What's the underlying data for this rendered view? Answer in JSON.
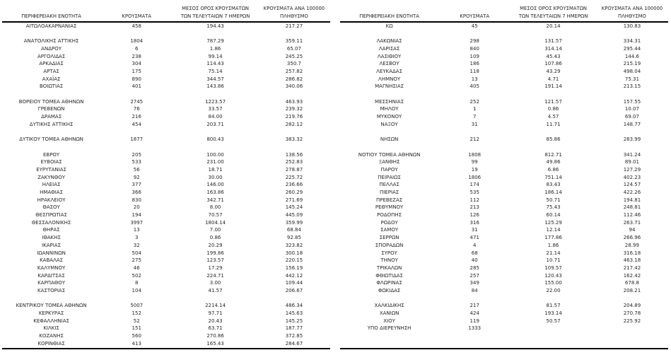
{
  "report": {
    "colors": {
      "text": "#262626",
      "rule": "#000000",
      "background": "#ffffff"
    },
    "columns": [
      {
        "key": "region",
        "lines": [
          "ΠΕΡΙΦΕΡΕΙΑΚΗ ΕΝΟΤΗΤΑ"
        ]
      },
      {
        "key": "cases",
        "lines": [
          "ΚΡΟΥΣΜΑΤΑ"
        ]
      },
      {
        "key": "avg7",
        "lines": [
          "ΜΕΣΟΣ ΟΡΟΣ ΚΡΟΥΣΜΑΤΩΝ",
          "ΤΩΝ ΤΕΛΕΥΤΑΙΩΝ 7 ΗΜΕΡΩΝ"
        ]
      },
      {
        "key": "per100k",
        "lines": [
          "ΚΡΟΥΣΜΑΤΑ ΑΝΑ 100000",
          "ΠΛΗΘΥΣΜΟ"
        ]
      }
    ],
    "left_table": {
      "rows": [
        [
          "ΑΙΤΩΛΟΑΚΑΡΝΑΝΙΑΣ",
          "458",
          "194.43",
          "217.27"
        ],
        null,
        [
          "ΑΝΑΤΟΛΙΚΗΣ ΑΤΤΙΚΗΣ",
          "1804",
          "787.29",
          "359.11"
        ],
        [
          "ΑΝΔΡΟΥ",
          "6",
          "1.86",
          "65.07"
        ],
        [
          "ΑΡΓΟΛΙΔΑΣ",
          "238",
          "99.14",
          "245.25"
        ],
        [
          "ΑΡΚΑΔΙΑΣ",
          "304",
          "114.43",
          "350.7"
        ],
        [
          "ΑΡΤΑΣ",
          "175",
          "75.14",
          "257.82"
        ],
        [
          "ΑΧΑΪΑΣ",
          "890",
          "344.57",
          "286.82"
        ],
        [
          "ΒΟΙΩΤΙΑΣ",
          "401",
          "143.86",
          "340.06"
        ],
        null,
        [
          "ΒΟΡΕΙΟΥ ΤΟΜΕΑ ΑΘΗΝΩΝ",
          "2745",
          "1223.57",
          "463.93"
        ],
        [
          "ΓΡΕΒΕΝΩΝ",
          "76",
          "33.57",
          "239.32"
        ],
        [
          "ΔΡΑΜΑΣ",
          "216",
          "84.00",
          "219.76"
        ],
        [
          "ΔΥΤΙΚΗΣ ΑΤΤΙΚΗΣ",
          "454",
          "203.71",
          "282.12"
        ],
        null,
        [
          "ΔΥΤΙΚΟΥ ΤΟΜΕΑ ΑΘΗΝΩΝ",
          "1877",
          "800.43",
          "383.32"
        ],
        null,
        [
          "ΕΒΡΟΥ",
          "205",
          "100.00",
          "138.56"
        ],
        [
          "ΕΥΒΟΙΑΣ",
          "533",
          "231.00",
          "252.83"
        ],
        [
          "ΕΥΡΥΤΑΝΙΑΣ",
          "56",
          "18.71",
          "278.87"
        ],
        [
          "ΖΑΚΥΝΘΟΥ",
          "92",
          "30.00",
          "225.72"
        ],
        [
          "ΗΛΕΙΑΣ",
          "377",
          "146.00",
          "236.66"
        ],
        [
          "ΗΜΑΘΙΑΣ",
          "366",
          "163.86",
          "260.29"
        ],
        [
          "ΗΡΑΚΛΕΙΟΥ",
          "830",
          "342.71",
          "271.69"
        ],
        [
          "ΘΑΣΟΥ",
          "20",
          "8.00",
          "145.24"
        ],
        [
          "ΘΕΣΠΡΩΤΙΑΣ",
          "194",
          "70.57",
          "445.09"
        ],
        [
          "ΘΕΣΣΑΛΟΝΙΚΗΣ",
          "3997",
          "1804.14",
          "359.99"
        ],
        [
          "ΘΗΡΑΣ",
          "13",
          "7.00",
          "68.84"
        ],
        [
          "ΙΘΑΚΗΣ",
          "3",
          "0.86",
          "92.85"
        ],
        [
          "ΙΚΑΡΙΑΣ",
          "32",
          "20.29",
          "323.82"
        ],
        [
          "ΙΩΑΝΝΙΝΩΝ",
          "504",
          "199.86",
          "300.18"
        ],
        [
          "ΚΑΒΑΛΑΣ",
          "275",
          "123.57",
          "220.15"
        ],
        [
          "ΚΑΛΥΜΝΟΥ",
          "46",
          "17.29",
          "156.19"
        ],
        [
          "ΚΑΡΔΙΤΣΑΣ",
          "502",
          "224.71",
          "442.12"
        ],
        [
          "ΚΑΡΠΑΘΟΥ",
          "8",
          "3.00",
          "109.44"
        ],
        [
          "ΚΑΣΤΟΡΙΑΣ",
          "104",
          "41.57",
          "206.67"
        ],
        null,
        [
          "ΚΕΝΤΡΙΚΟΥ ΤΟΜΕΑ ΑΘΗΝΩΝ",
          "5007",
          "2214.14",
          "486.34"
        ],
        [
          "ΚΕΡΚΥΡΑΣ",
          "152",
          "97.71",
          "145.63"
        ],
        [
          "ΚΕΦΑΛΛΗΝΙΑΣ",
          "52",
          "20.43",
          "145.25"
        ],
        [
          "ΚΙΛΚΙΣ",
          "151",
          "63.71",
          "187.77"
        ],
        [
          "ΚΟΖΑΝΗΣ",
          "560",
          "270.86",
          "372.85"
        ],
        [
          "ΚΟΡΙΝΘΙΑΣ",
          "413",
          "165.43",
          "284.67"
        ]
      ]
    },
    "right_table": {
      "rows": [
        [
          "ΚΩ",
          "45",
          "20.14",
          "130.83"
        ],
        null,
        [
          "ΛΑΚΩΝΙΑΣ",
          "298",
          "131.57",
          "334.31"
        ],
        [
          "ΛΑΡΙΣΑΣ",
          "840",
          "314.14",
          "295.44"
        ],
        [
          "ΛΑΣΙΘΙΟΥ",
          "109",
          "45.43",
          "144.6"
        ],
        [
          "ΛΕΣΒΟΥ",
          "186",
          "107.86",
          "215.19"
        ],
        [
          "ΛΕΥΚΑΔΑΣ",
          "118",
          "43.29",
          "498.04"
        ],
        [
          "ΛΗΜΝΟΥ",
          "13",
          "4.71",
          "75.31"
        ],
        [
          "ΜΑΓΝΗΣΙΑΣ",
          "405",
          "191.14",
          "213.15"
        ],
        null,
        [
          "ΜΕΣΣΗΝΙΑΣ",
          "252",
          "121.57",
          "157.55"
        ],
        [
          "ΜΗΛΟΥ",
          "1",
          "0.86",
          "10.07"
        ],
        [
          "ΜΥΚΟΝΟΥ",
          "7",
          "4.57",
          "69.07"
        ],
        [
          "ΝΑΞΟΥ",
          "31",
          "11.71",
          "148.77"
        ],
        null,
        [
          "ΝΗΣΩΝ",
          "212",
          "85.86",
          "283.99"
        ],
        null,
        [
          "ΝΟΤΙΟΥ ΤΟΜΕΑ ΑΘΗΝΩΝ",
          "1808",
          "812.71",
          "341.24"
        ],
        [
          "ΞΑΝΘΗΣ",
          "99",
          "49.86",
          "89.01"
        ],
        [
          "ΠΑΡΟΥ",
          "19",
          "6.86",
          "127.29"
        ],
        [
          "ΠΕΙΡΑΙΩΣ",
          "1806",
          "751.14",
          "402.23"
        ],
        [
          "ΠΕΛΛΑΣ",
          "174",
          "83.43",
          "124.57"
        ],
        [
          "ΠΙΕΡΙΑΣ",
          "535",
          "186.14",
          "422.26"
        ],
        [
          "ΠΡΕΒΕΖΑΣ",
          "112",
          "50.71",
          "194.81"
        ],
        [
          "ΡΕΘΥΜΝΟΥ",
          "213",
          "75.43",
          "248.81"
        ],
        [
          "ΡΟΔΟΠΗΣ",
          "126",
          "60.14",
          "112.46"
        ],
        [
          "ΡΟΔΟΥ",
          "316",
          "125.29",
          "263.71"
        ],
        [
          "ΣΑΜΟΥ",
          "31",
          "12.14",
          "94"
        ],
        [
          "ΣΕΡΡΩΝ",
          "471",
          "177.86",
          "266.96"
        ],
        [
          "ΣΠΟΡΑΔΩΝ",
          "4",
          "1.86",
          "28.99"
        ],
        [
          "ΣΥΡΟΥ",
          "68",
          "21.14",
          "316.18"
        ],
        [
          "ΤΗΝΟΥ",
          "40",
          "10.71",
          "463.18"
        ],
        [
          "ΤΡΙΚΑΛΩΝ",
          "285",
          "109.57",
          "217.42"
        ],
        [
          "ΦΘΙΩΤΙΔΑΣ",
          "257",
          "120.43",
          "162.42"
        ],
        [
          "ΦΛΩΡΙΝΑΣ",
          "349",
          "155.00",
          "678.8"
        ],
        [
          "ΦΩΚΙΔΑΣ",
          "84",
          "22.00",
          "208.21"
        ],
        null,
        [
          "ΧΑΛΚΙΔΙΚΗΣ",
          "217",
          "81.57",
          "204.89"
        ],
        [
          "ΧΑΝΙΩΝ",
          "424",
          "193.14",
          "270.78"
        ],
        [
          "ΧΙΟΥ",
          "119",
          "50.57",
          "225.92"
        ],
        [
          "ΥΠΟ ΔΙΕΡΕΥΝΗΣΗ",
          "1333",
          "",
          ""
        ],
        null,
        null
      ]
    }
  }
}
